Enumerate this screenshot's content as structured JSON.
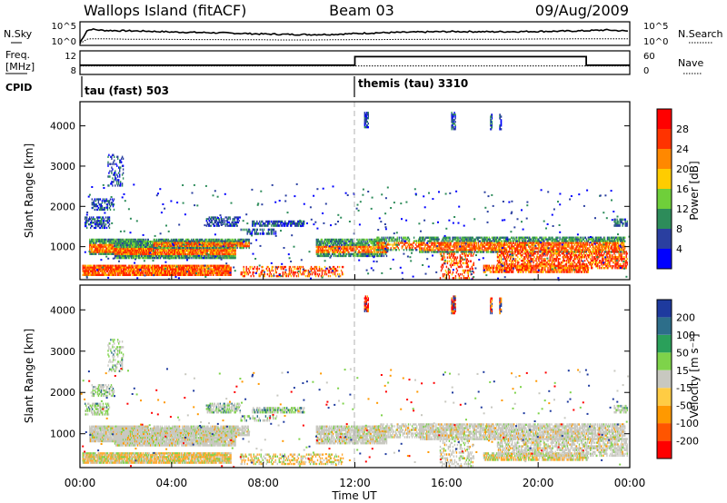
{
  "header": {
    "station": "Wallops Island (fitACF)",
    "beam": "Beam 03",
    "date": "09/Aug/2009"
  },
  "colors": {
    "frame": "#000000",
    "noon_line": "#aaaaaa",
    "data_gap": "#ffffff"
  },
  "chart_data": [
    {
      "type": "line",
      "name": "noise-panel",
      "left_label": "N.Sky",
      "right_label": "N.Search",
      "left_ticks": [
        "10^5",
        "10^0"
      ],
      "right_ticks": [
        "10^5",
        "10^0"
      ],
      "x_hours": [
        0,
        0.3,
        0.5,
        1,
        2,
        3,
        4,
        5,
        6,
        7,
        8,
        9,
        10,
        11,
        12,
        13,
        14,
        15,
        16,
        17,
        18,
        19,
        20,
        21,
        22,
        23,
        24
      ],
      "nsky": [
        0.2,
        3.2,
        3.6,
        3.3,
        3.2,
        3.1,
        2.9,
        2.8,
        2.7,
        2.55,
        2.4,
        2.3,
        2.25,
        2.3,
        2.5,
        2.7,
        2.8,
        2.9,
        3.0,
        3.0,
        2.95,
        3.0,
        3.05,
        3.1,
        3.2,
        3.4,
        3.1
      ],
      "nsearch": [
        0.0,
        1.1,
        1.2,
        1.2,
        1.1,
        1.1,
        1.05,
        1.0,
        1.0,
        0.95,
        0.95,
        0.9,
        0.9,
        0.95,
        1.0,
        1.0,
        1.05,
        1.05,
        1.1,
        1.1,
        1.1,
        1.1,
        1.15,
        1.15,
        1.2,
        1.2,
        1.2
      ]
    },
    {
      "type": "line",
      "name": "frequency-panel",
      "left_label_1": "Freq.",
      "left_label_2": "[MHz]",
      "right_label": "Nave",
      "left_ticks": [
        "12",
        "8"
      ],
      "right_ticks": [
        "60",
        "0"
      ],
      "freq_steps": [
        {
          "from": 0,
          "to": 12,
          "value": 9.5
        },
        {
          "from": 12,
          "to": 22.1,
          "value": 11.2
        },
        {
          "from": 22.1,
          "to": 24,
          "value": 9.5
        }
      ],
      "nave_level": 20
    },
    {
      "type": "table",
      "name": "cpid-panel",
      "label": "CPID",
      "segments": [
        {
          "from": 0,
          "to": 12,
          "label": "tau (fast) 503"
        },
        {
          "from": 12,
          "to": 24,
          "label": "themis (tau) 3310"
        }
      ]
    },
    {
      "type": "heatmap",
      "name": "power",
      "ylabel": "Slant Range [km]",
      "yticks": [
        1000,
        2000,
        3000,
        4000
      ],
      "ylim": [
        180,
        4600
      ],
      "xlim": [
        0,
        24
      ],
      "colorbar_label": "Power [dB]",
      "colorbar_ticks": [
        "4",
        "8",
        "12",
        "16",
        "20",
        "24",
        "28"
      ],
      "colorbar_colors": [
        "#0000ff",
        "#2a3fa0",
        "#2d8c5a",
        "#6fcf3a",
        "#ffcc00",
        "#ff8800",
        "#ff3300",
        "#ff0000"
      ],
      "scatter_count": 420
    },
    {
      "type": "heatmap",
      "name": "velocity",
      "ylabel": "Slant Range [km]",
      "yticks": [
        1000,
        2000,
        3000,
        4000
      ],
      "ylim": [
        180,
        4600
      ],
      "xlim": [
        0,
        24
      ],
      "xlabel": "Time UT",
      "xticks": [
        "00:00",
        "04:00",
        "08:00",
        "12:00",
        "16:00",
        "20:00",
        "00:00"
      ],
      "colorbar_label": "Velocity [m s⁻¹]",
      "colorbar_ticks": [
        "200",
        "100",
        "50",
        "15",
        "-15",
        "-50",
        "-100",
        "-200"
      ],
      "colorbar_colors": [
        "#1e3a9e",
        "#2d6e8a",
        "#2aa05a",
        "#7ed34a",
        "#c8c8c0",
        "#ffcc44",
        "#ff9900",
        "#ff5500",
        "#ff0000"
      ],
      "scatter_count": 320
    }
  ],
  "echo_regions": [
    {
      "t0": 0.2,
      "t1": 1.3,
      "r0": 1450,
      "r1": 1750,
      "d": 0.55
    },
    {
      "t0": 0.4,
      "t1": 3.0,
      "r0": 800,
      "r1": 1200,
      "d": 0.9
    },
    {
      "t0": 0.1,
      "t1": 6.6,
      "r0": 280,
      "r1": 550,
      "d": 0.9
    },
    {
      "t0": 1.5,
      "t1": 6.8,
      "r0": 700,
      "r1": 1150,
      "d": 0.9
    },
    {
      "t0": 3.2,
      "t1": 7.4,
      "r0": 950,
      "r1": 1200,
      "d": 0.8
    },
    {
      "t0": 0.5,
      "t1": 1.5,
      "r0": 1900,
      "r1": 2200,
      "d": 0.5
    },
    {
      "t0": 1.2,
      "t1": 1.9,
      "r0": 2500,
      "r1": 3300,
      "d": 0.3
    },
    {
      "t0": 5.5,
      "t1": 7.0,
      "r0": 1500,
      "r1": 1750,
      "d": 0.6
    },
    {
      "t0": 7.5,
      "t1": 9.8,
      "r0": 1500,
      "r1": 1650,
      "d": 0.7
    },
    {
      "t0": 7.0,
      "t1": 8.6,
      "r0": 1300,
      "r1": 1450,
      "d": 0.4
    },
    {
      "t0": 7.0,
      "t1": 11.5,
      "r0": 250,
      "r1": 520,
      "d": 0.4
    },
    {
      "t0": 10.3,
      "t1": 13.4,
      "r0": 750,
      "r1": 1200,
      "d": 0.8
    },
    {
      "t0": 12.9,
      "t1": 15.0,
      "r0": 900,
      "r1": 1250,
      "d": 0.5
    },
    {
      "t0": 14.8,
      "t1": 23.8,
      "r0": 850,
      "r1": 1250,
      "d": 0.75
    },
    {
      "t0": 17.6,
      "t1": 22.2,
      "r0": 350,
      "r1": 550,
      "d": 0.7
    },
    {
      "t0": 18.2,
      "t1": 23.9,
      "r0": 450,
      "r1": 900,
      "d": 0.55
    },
    {
      "t0": 15.7,
      "t1": 17.2,
      "r0": 200,
      "r1": 850,
      "d": 0.3
    },
    {
      "t0": 23.3,
      "t1": 23.9,
      "r0": 1500,
      "r1": 1700,
      "d": 0.6
    },
    {
      "t0": 16.2,
      "t1": 16.4,
      "r0": 3900,
      "r1": 4350,
      "d": 0.8
    },
    {
      "t0": 17.9,
      "t1": 18.0,
      "r0": 3900,
      "r1": 4300,
      "d": 0.8
    },
    {
      "t0": 18.3,
      "t1": 18.4,
      "r0": 3900,
      "r1": 4300,
      "d": 0.8
    },
    {
      "t0": 12.4,
      "t1": 12.6,
      "r0": 3950,
      "r1": 4350,
      "d": 0.8
    }
  ]
}
